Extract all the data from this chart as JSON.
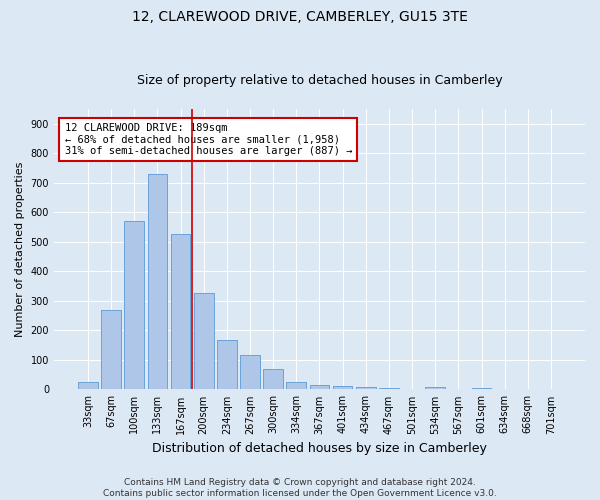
{
  "title": "12, CLAREWOOD DRIVE, CAMBERLEY, GU15 3TE",
  "subtitle": "Size of property relative to detached houses in Camberley",
  "xlabel": "Distribution of detached houses by size in Camberley",
  "ylabel": "Number of detached properties",
  "bar_labels": [
    "33sqm",
    "67sqm",
    "100sqm",
    "133sqm",
    "167sqm",
    "200sqm",
    "234sqm",
    "267sqm",
    "300sqm",
    "334sqm",
    "367sqm",
    "401sqm",
    "434sqm",
    "467sqm",
    "501sqm",
    "534sqm",
    "567sqm",
    "601sqm",
    "634sqm",
    "668sqm",
    "701sqm"
  ],
  "bar_values": [
    25,
    270,
    570,
    730,
    525,
    328,
    168,
    115,
    68,
    25,
    15,
    10,
    8,
    5,
    0,
    8,
    0,
    5,
    0,
    0,
    0
  ],
  "bar_color": "#aec6e8",
  "bar_edge_color": "#5b9bd5",
  "annotation_text": "12 CLAREWOOD DRIVE: 189sqm\n← 68% of detached houses are smaller (1,958)\n31% of semi-detached houses are larger (887) →",
  "annotation_box_color": "#ffffff",
  "annotation_border_color": "#cc0000",
  "vline_color": "#cc0000",
  "bg_color": "#dde8f5",
  "plot_bg_color": "#dde8f5",
  "footer_line1": "Contains HM Land Registry data © Crown copyright and database right 2024.",
  "footer_line2": "Contains public sector information licensed under the Open Government Licence v3.0.",
  "ylim": [
    0,
    950
  ],
  "yticks": [
    0,
    100,
    200,
    300,
    400,
    500,
    600,
    700,
    800,
    900
  ],
  "title_fontsize": 10,
  "subtitle_fontsize": 9,
  "xlabel_fontsize": 9,
  "ylabel_fontsize": 8,
  "tick_fontsize": 7,
  "annotation_fontsize": 7.5,
  "footer_fontsize": 6.5
}
